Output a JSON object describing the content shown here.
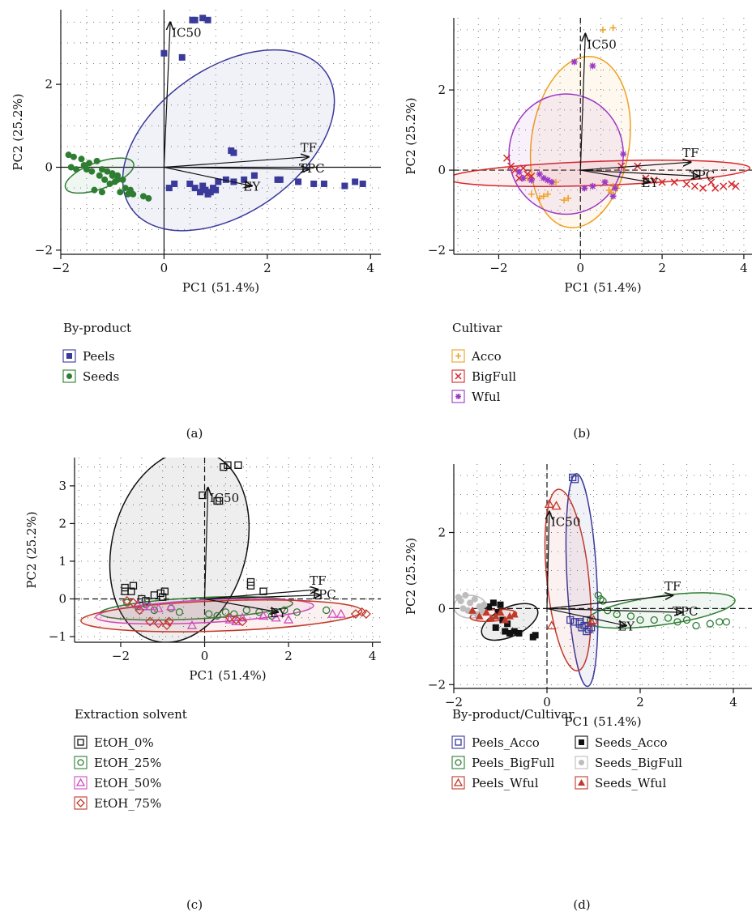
{
  "chart_data": [
    {
      "panel_label": "(a)",
      "type": "scatter",
      "xlabel": "PC1 (51.4%)",
      "ylabel": "PC2 (25.2%)",
      "xlim": [
        -2,
        4.2
      ],
      "ylim": [
        -2.1,
        3.8
      ],
      "xticks": [
        -2,
        0,
        2,
        4
      ],
      "yticks": [
        -2,
        0,
        2
      ],
      "grid": "dotted",
      "legend_title": "By-product",
      "vectors": [
        {
          "label": "IC50",
          "x": 0.12,
          "y": 3.5
        },
        {
          "label": "TF",
          "x": 2.8,
          "y": 0.25
        },
        {
          "label": "TPC",
          "x": 2.8,
          "y": -0.05
        },
        {
          "label": "EY",
          "x": 1.7,
          "y": -0.45
        }
      ],
      "series": [
        {
          "name": "Peels",
          "color": "#3a3a9a",
          "marker": "square",
          "x": [
            0.55,
            0.6,
            0.75,
            0.85,
            0.0,
            0.35,
            1.3,
            1.35,
            0.1,
            0.2,
            0.5,
            0.6,
            0.7,
            0.75,
            0.8,
            0.9,
            0.95,
            1.0,
            1.05,
            0.85,
            1.2,
            1.35,
            1.55,
            1.75,
            2.2,
            2.25,
            2.6,
            2.9,
            3.1,
            3.5,
            3.7,
            3.85
          ],
          "y": [
            3.55,
            3.55,
            3.6,
            3.55,
            2.75,
            2.65,
            0.4,
            0.35,
            -0.5,
            -0.4,
            -0.4,
            -0.5,
            -0.6,
            -0.45,
            -0.55,
            -0.6,
            -0.5,
            -0.55,
            -0.35,
            -0.65,
            -0.3,
            -0.35,
            -0.3,
            -0.2,
            -0.3,
            -0.3,
            -0.35,
            -0.4,
            -0.4,
            -0.45,
            -0.35,
            -0.4
          ]
        },
        {
          "name": "Seeds",
          "color": "#2e7d32",
          "marker": "circle",
          "x": [
            -1.85,
            -1.75,
            -1.8,
            -1.7,
            -1.6,
            -1.55,
            -1.5,
            -1.45,
            -1.4,
            -1.3,
            -1.25,
            -1.2,
            -1.15,
            -1.1,
            -1.05,
            -1.0,
            -0.95,
            -0.9,
            -0.85,
            -0.8,
            -0.75,
            -0.7,
            -0.65,
            -0.6,
            -1.35,
            -1.2,
            -1.0,
            -0.9,
            -0.3,
            -0.4
          ],
          "y": [
            0.3,
            0.25,
            0.0,
            -0.05,
            0.2,
            0.05,
            -0.05,
            0.1,
            -0.1,
            0.15,
            -0.2,
            -0.05,
            -0.3,
            -0.1,
            -0.4,
            -0.15,
            -0.35,
            -0.2,
            -0.6,
            -0.3,
            -0.5,
            -0.65,
            -0.55,
            -0.65,
            -0.55,
            -0.6,
            -0.2,
            -0.3,
            -0.75,
            -0.7
          ]
        }
      ],
      "ellipses": [
        {
          "series": "Peels",
          "cx": 1.25,
          "cy": 0.65,
          "rx": 2.3,
          "ry": 1.75,
          "angle": -35
        },
        {
          "series": "Seeds",
          "cx": -1.25,
          "cy": -0.2,
          "rx": 0.7,
          "ry": 0.32,
          "angle": -20
        }
      ]
    },
    {
      "panel_label": "(b)",
      "type": "scatter",
      "xlabel": "PC1 (51.4%)",
      "ylabel": "PC2 (25.2%)",
      "xlim": [
        -3.1,
        4.2
      ],
      "ylim": [
        -2.1,
        3.8
      ],
      "xticks": [
        -2,
        0,
        2,
        4
      ],
      "yticks": [
        -2,
        0,
        2
      ],
      "grid": "dotted",
      "legend_title": "Cultivar",
      "vectors": [
        {
          "label": "IC50",
          "x": 0.12,
          "y": 3.4
        },
        {
          "label": "TF",
          "x": 2.7,
          "y": 0.2
        },
        {
          "label": "TPC",
          "x": 2.9,
          "y": -0.15
        },
        {
          "label": "EY",
          "x": 1.7,
          "y": -0.3
        }
      ],
      "series": [
        {
          "name": "Acco",
          "color": "#f0a020",
          "marker": "plus",
          "x": [
            0.55,
            0.8,
            -1.3,
            -1.2,
            -1.0,
            -0.9,
            -0.8,
            -0.6,
            -0.4,
            -0.3,
            0.7,
            0.8,
            0.9,
            0.6,
            0.75
          ],
          "y": [
            3.5,
            3.55,
            -0.2,
            -0.6,
            -0.7,
            -0.65,
            -0.6,
            -0.3,
            -0.75,
            -0.7,
            -0.5,
            -0.4,
            -0.45,
            -0.3,
            -0.55
          ]
        },
        {
          "name": "BigFull",
          "color": "#d62728",
          "marker": "x",
          "x": [
            -1.8,
            -1.7,
            -1.6,
            -1.5,
            -1.4,
            -1.3,
            -1.2,
            1.0,
            1.4,
            1.6,
            1.8,
            2.0,
            2.3,
            2.6,
            2.8,
            3.0,
            3.2,
            3.3,
            3.5,
            3.7,
            3.8
          ],
          "y": [
            0.3,
            0.1,
            0.0,
            -0.2,
            0.05,
            -0.1,
            -0.15,
            0.1,
            0.1,
            -0.2,
            -0.25,
            -0.3,
            -0.3,
            -0.35,
            -0.4,
            -0.45,
            -0.3,
            -0.45,
            -0.4,
            -0.35,
            -0.4
          ]
        },
        {
          "name": "Wful",
          "color": "#9b39c6",
          "marker": "star",
          "x": [
            -0.15,
            0.3,
            -1.5,
            -1.4,
            -1.2,
            -1.0,
            -0.9,
            -0.8,
            -0.7,
            0.1,
            0.3,
            0.8,
            0.85,
            1.05,
            0.6
          ],
          "y": [
            2.7,
            2.6,
            -0.05,
            -0.2,
            -0.25,
            -0.1,
            -0.2,
            -0.25,
            -0.3,
            -0.45,
            -0.4,
            -0.65,
            -0.45,
            0.4,
            -0.3
          ]
        }
      ],
      "ellipses": [
        {
          "series": "Acco",
          "cx": 0.0,
          "cy": 0.7,
          "rx": 1.2,
          "ry": 2.15,
          "angle": 8
        },
        {
          "series": "BigFull",
          "cx": 0.45,
          "cy": -0.08,
          "rx": 3.7,
          "ry": 0.3,
          "angle": -2
        },
        {
          "series": "Wful",
          "cx": -0.35,
          "cy": 0.4,
          "rx": 1.4,
          "ry": 1.5,
          "angle": 0
        }
      ]
    },
    {
      "panel_label": "(c)",
      "type": "scatter",
      "xlabel": "PC1 (51.4%)",
      "ylabel": "PC2 (25.2%)",
      "xlim": [
        -3.1,
        4.2
      ],
      "ylim": [
        -1.15,
        3.75
      ],
      "xticks": [
        -2,
        0,
        2,
        4
      ],
      "yticks": [
        -1,
        0,
        1,
        2,
        3
      ],
      "grid": "dotted",
      "legend_title": "Extraction solvent",
      "vectors": [
        {
          "label": "IC50",
          "x": 0.08,
          "y": 2.95
        },
        {
          "label": "TF",
          "x": 2.7,
          "y": 0.25
        },
        {
          "label": "TPC",
          "x": 2.75,
          "y": 0.1
        },
        {
          "label": "EY",
          "x": 1.75,
          "y": -0.35
        }
      ],
      "series": [
        {
          "name": "EtOH_0%",
          "color": "#111111",
          "marker": "square-open",
          "x": [
            0.45,
            0.55,
            0.8,
            -0.05,
            0.3,
            0.35,
            -1.9,
            -1.9,
            -1.7,
            -1.75,
            -1.5,
            -1.2,
            -1.05,
            -1.0,
            -0.95,
            1.1,
            1.1,
            1.4,
            -1.4
          ],
          "y": [
            3.5,
            3.55,
            3.55,
            2.75,
            2.6,
            2.6,
            0.3,
            0.2,
            0.35,
            0.2,
            0.0,
            0.1,
            0.15,
            0.05,
            0.2,
            0.45,
            0.35,
            0.2,
            -0.05
          ]
        },
        {
          "name": "EtOH_25%",
          "color": "#2e7d32",
          "marker": "circle-open",
          "x": [
            -1.85,
            -1.6,
            -1.4,
            -1.2,
            -0.8,
            -0.6,
            0.1,
            0.3,
            0.5,
            0.7,
            1.0,
            1.3,
            1.6,
            1.9,
            2.2,
            2.9
          ],
          "y": [
            -0.1,
            -0.2,
            -0.15,
            -0.3,
            -0.25,
            -0.35,
            -0.4,
            -0.45,
            -0.35,
            -0.4,
            -0.3,
            -0.35,
            -0.45,
            -0.3,
            -0.35,
            -0.3
          ]
        },
        {
          "name": "EtOH_50%",
          "color": "#d04cc0",
          "marker": "triangle-open",
          "x": [
            -1.6,
            -1.45,
            -1.3,
            -1.1,
            -0.8,
            -0.3,
            0.6,
            0.75,
            0.9,
            1.4,
            1.7,
            2.0,
            3.05,
            3.25
          ],
          "y": [
            -0.15,
            -0.2,
            -0.2,
            -0.25,
            -0.2,
            -0.7,
            -0.55,
            -0.6,
            -0.5,
            -0.45,
            -0.5,
            -0.55,
            -0.4,
            -0.4
          ]
        },
        {
          "name": "EtOH_75%",
          "color": "#c0392b",
          "marker": "diamond-open",
          "x": [
            -1.85,
            -1.7,
            -1.55,
            -1.3,
            -1.1,
            -0.9,
            -0.85,
            0.6,
            0.75,
            0.9,
            3.6,
            3.75,
            3.85
          ],
          "y": [
            -0.05,
            -0.1,
            -0.3,
            -0.6,
            -0.65,
            -0.7,
            -0.6,
            -0.5,
            -0.55,
            -0.6,
            -0.4,
            -0.35,
            -0.4
          ]
        }
      ],
      "ellipses": [
        {
          "series": "EtOH_0%",
          "cx": -0.6,
          "cy": 1.4,
          "rx": 1.6,
          "ry": 2.6,
          "angle": 15
        },
        {
          "series": "EtOH_25%",
          "cx": -0.2,
          "cy": -0.25,
          "rx": 2.3,
          "ry": 0.28,
          "angle": -3
        },
        {
          "series": "EtOH_50%",
          "cx": 0.0,
          "cy": -0.33,
          "rx": 2.6,
          "ry": 0.3,
          "angle": -3
        },
        {
          "series": "EtOH_75%",
          "cx": 0.4,
          "cy": -0.45,
          "rx": 3.35,
          "ry": 0.4,
          "angle": -2
        }
      ]
    },
    {
      "panel_label": "(d)",
      "type": "scatter",
      "xlabel": "PC1 (51.4%)",
      "ylabel": "PC2 (25.2%)",
      "xlim": [
        -2.0,
        4.4
      ],
      "ylim": [
        -2.1,
        3.8
      ],
      "xticks": [
        -2,
        0,
        2,
        4
      ],
      "yticks": [
        -2,
        0,
        2
      ],
      "grid": "dotted",
      "legend_title": "By-product/Cultivar",
      "vectors": [
        {
          "label": "IC50",
          "x": 0.05,
          "y": 2.55
        },
        {
          "label": "TF",
          "x": 2.7,
          "y": 0.35
        },
        {
          "label": "TPC",
          "x": 2.9,
          "y": -0.1
        },
        {
          "label": "EY",
          "x": 1.7,
          "y": -0.45
        }
      ],
      "series": [
        {
          "name": "Peels_Acco",
          "color": "#3a3a9a",
          "marker": "square-open",
          "x": [
            0.55,
            0.6,
            0.5,
            0.6,
            0.7,
            0.75,
            0.8,
            0.85,
            0.9,
            0.95,
            0.7,
            0.85
          ],
          "y": [
            3.45,
            3.4,
            -0.3,
            -0.35,
            -0.4,
            -0.5,
            -0.45,
            -0.6,
            -0.55,
            -0.5,
            -0.35,
            -0.3
          ]
        },
        {
          "name": "Peels_BigFull",
          "color": "#2e7d32",
          "marker": "circle-open",
          "x": [
            1.1,
            1.15,
            1.3,
            1.5,
            1.8,
            2.0,
            2.3,
            2.6,
            2.8,
            3.0,
            3.2,
            3.5,
            3.7,
            3.85,
            1.2
          ],
          "y": [
            0.35,
            0.25,
            -0.05,
            -0.15,
            -0.2,
            -0.3,
            -0.3,
            -0.25,
            -0.35,
            -0.3,
            -0.45,
            -0.4,
            -0.35,
            -0.35,
            0.2
          ]
        },
        {
          "name": "Peels_Wful",
          "color": "#c0392b",
          "marker": "triangle-open",
          "x": [
            0.05,
            0.2,
            0.1,
            0.95,
            1.0
          ],
          "y": [
            2.75,
            2.7,
            -0.45,
            -0.35,
            -0.3
          ]
        },
        {
          "name": "Seeds_Acco",
          "color": "#111111",
          "marker": "square",
          "x": [
            -1.25,
            -1.15,
            -1.05,
            -1.0,
            -0.95,
            -0.9,
            -0.8,
            -0.7,
            -0.6,
            -0.25,
            -0.3,
            -1.1,
            -0.85
          ],
          "y": [
            0.05,
            0.15,
            -0.1,
            0.1,
            -0.3,
            -0.6,
            -0.65,
            -0.6,
            -0.65,
            -0.7,
            -0.75,
            -0.5,
            -0.4
          ]
        },
        {
          "name": "Seeds_BigFull",
          "color": "#bdbdbd",
          "marker": "circle",
          "x": [
            -1.9,
            -1.85,
            -1.8,
            -1.75,
            -1.7,
            -1.65,
            -1.6,
            -1.55,
            -1.5,
            -1.45,
            -1.4,
            -1.35
          ],
          "y": [
            0.3,
            0.2,
            0.0,
            0.35,
            -0.05,
            0.15,
            -0.1,
            0.25,
            -0.15,
            0.05,
            -0.05,
            0.1
          ]
        },
        {
          "name": "Seeds_Wful",
          "color": "#c0392b",
          "marker": "triangle",
          "x": [
            -1.6,
            -1.45,
            -1.3,
            -1.2,
            -1.1,
            -1.0,
            -0.9,
            -0.8,
            -0.7
          ],
          "y": [
            -0.05,
            -0.2,
            -0.1,
            -0.25,
            -0.2,
            -0.1,
            -0.3,
            -0.2,
            -0.15
          ]
        }
      ],
      "ellipses": [
        {
          "series": "Peels_Acco",
          "cx": 0.75,
          "cy": 0.75,
          "rx": 0.32,
          "ry": 2.8,
          "angle": -3
        },
        {
          "series": "Peels_BigFull",
          "cx": 2.45,
          "cy": -0.05,
          "rx": 1.6,
          "ry": 0.38,
          "angle": -8
        },
        {
          "series": "Peels_Wful",
          "cx": 0.45,
          "cy": 0.75,
          "rx": 0.45,
          "ry": 2.4,
          "angle": -6
        },
        {
          "series": "Seeds_Acco",
          "cx": -0.8,
          "cy": -0.35,
          "rx": 0.65,
          "ry": 0.38,
          "angle": -25
        },
        {
          "series": "Seeds_BigFull",
          "cx": -1.65,
          "cy": 0.05,
          "rx": 0.35,
          "ry": 0.3,
          "angle": 0
        },
        {
          "series": "Seeds_Wful",
          "cx": -1.15,
          "cy": -0.18,
          "rx": 0.5,
          "ry": 0.15,
          "angle": -5
        }
      ]
    }
  ]
}
